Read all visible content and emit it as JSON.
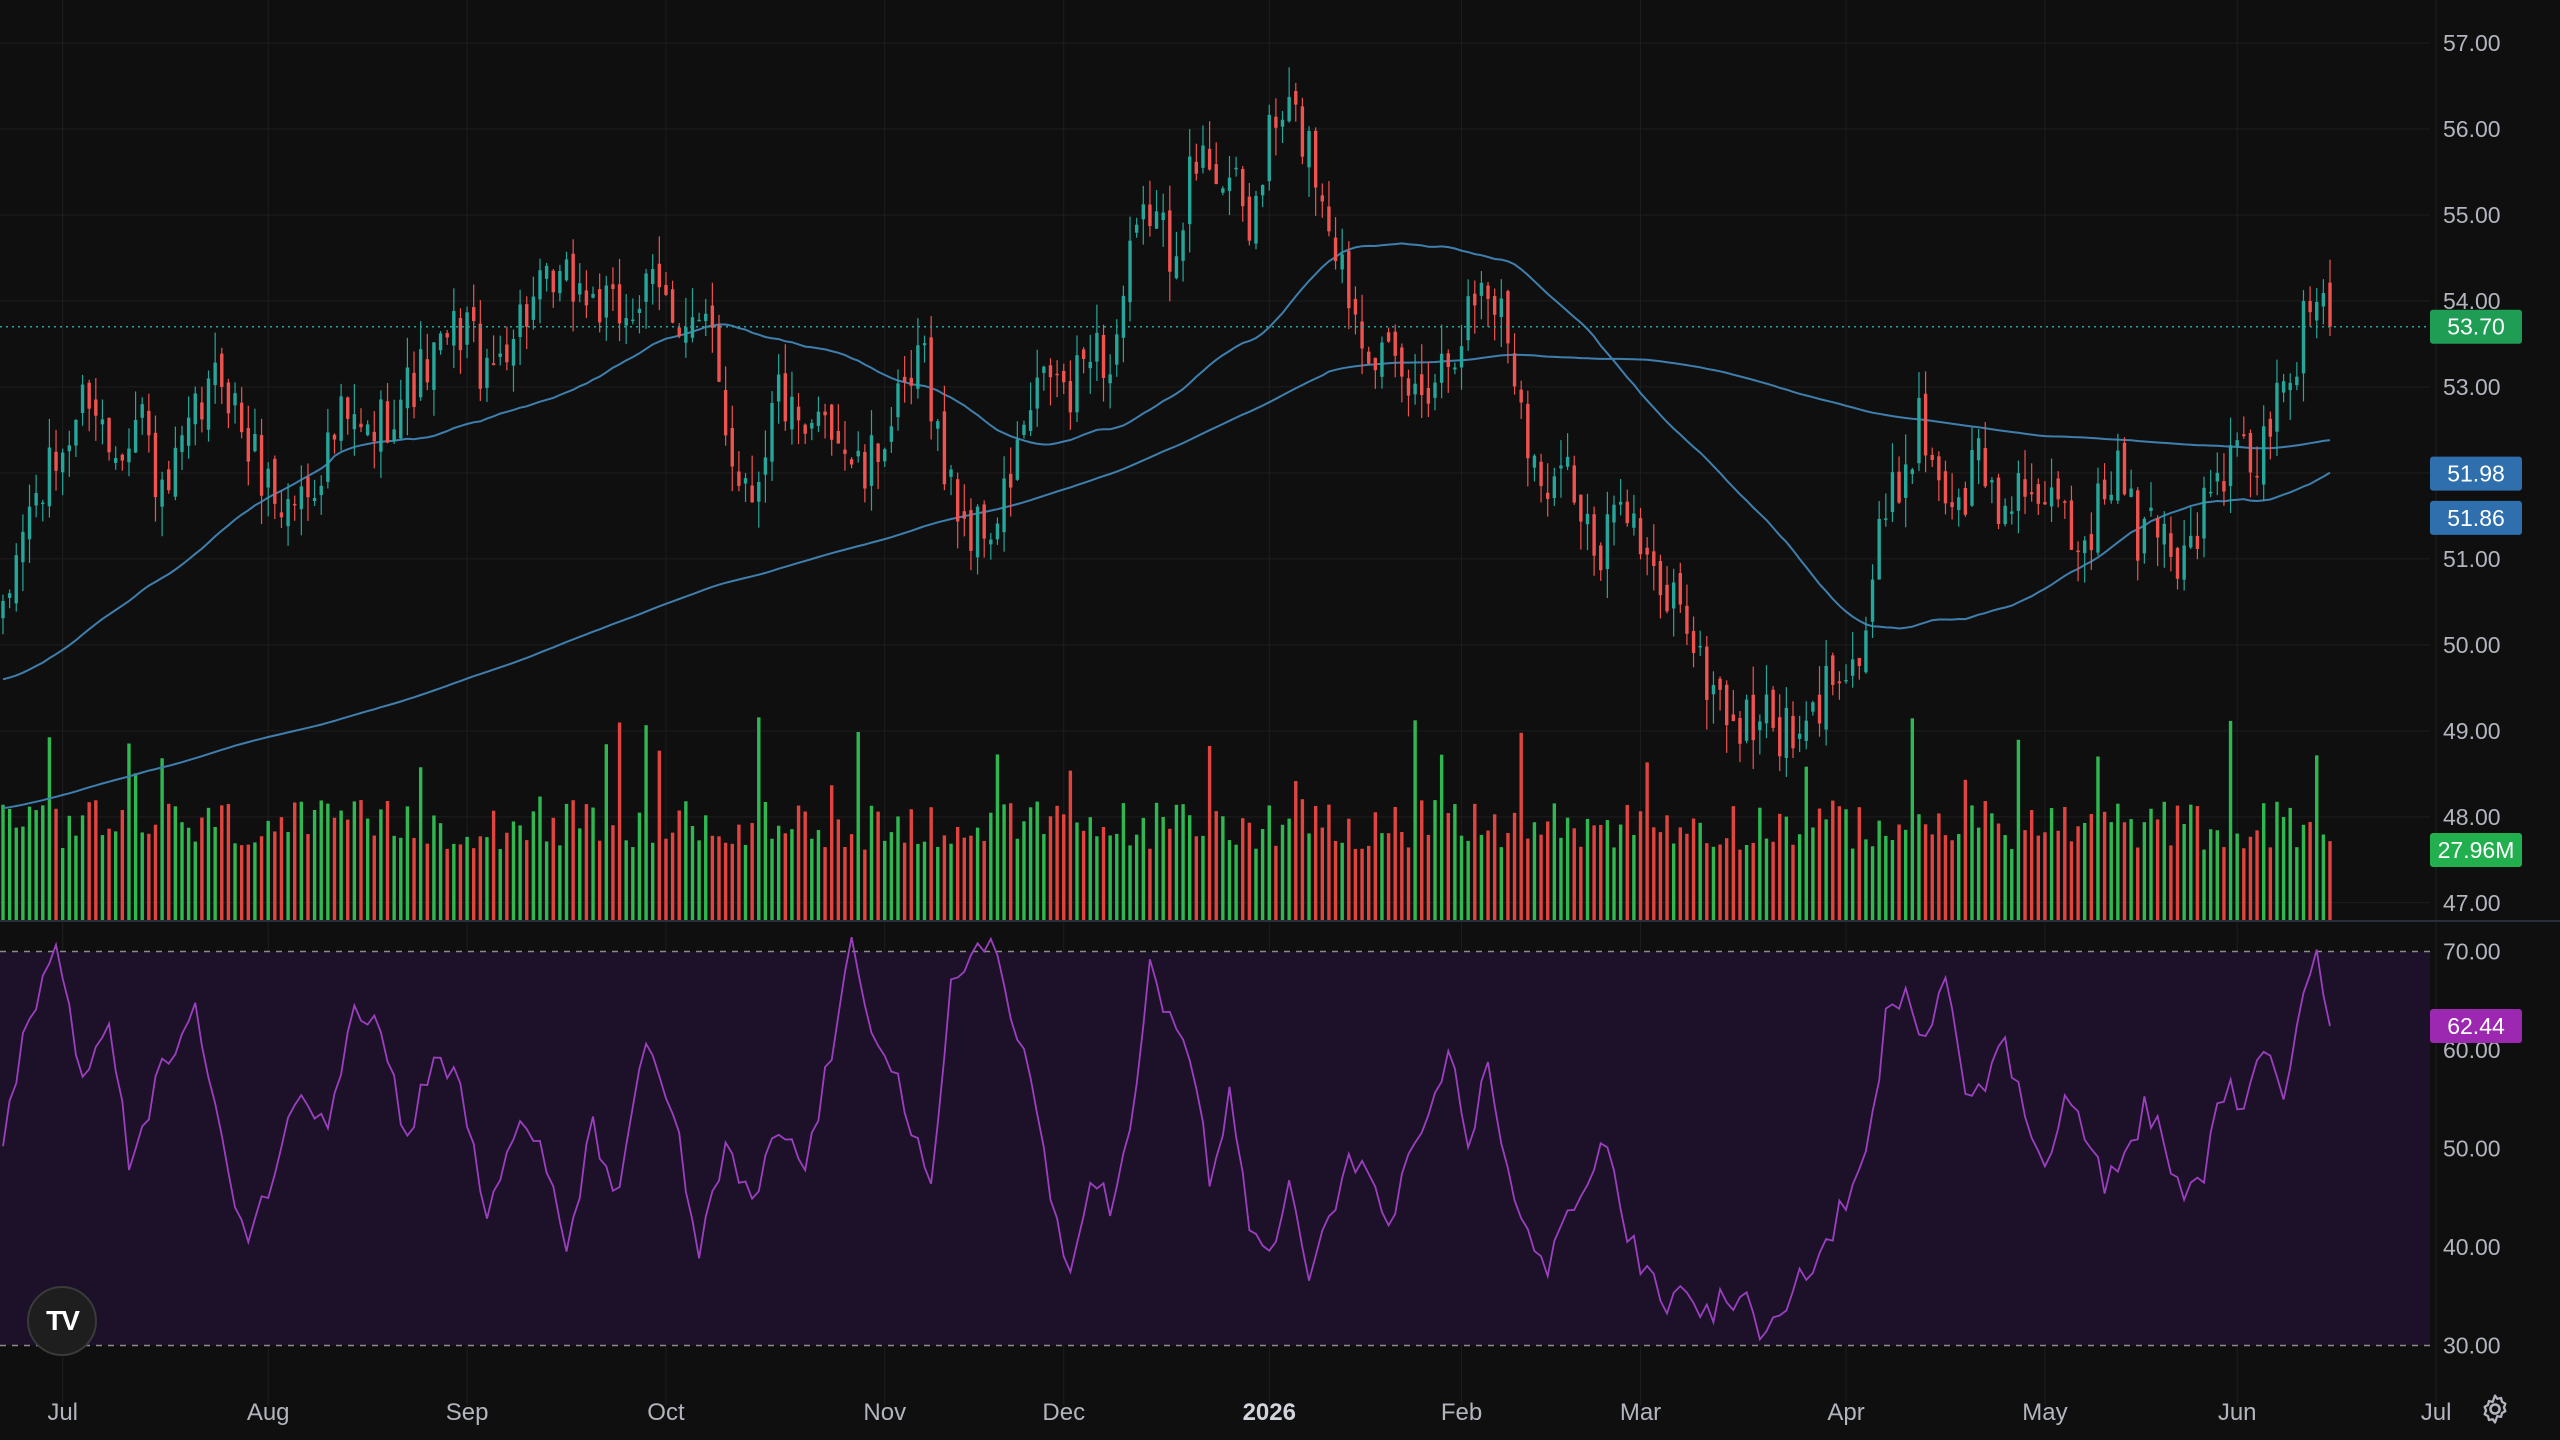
{
  "logo": {
    "text": "TV",
    "name": "tradingview-logo"
  },
  "settings_icon": "gear-icon",
  "colors": {
    "background": "#0f0f0f",
    "grid": "#1e1e1e",
    "up": "#26a69a",
    "down": "#ef5350",
    "volume_up": "#2fb851",
    "volume_down": "#e0443f",
    "ma": "#3f7fae",
    "rsi_line": "#9b3fbf",
    "rsi_band": "#1c1128",
    "price_badge": "#1f9d55",
    "ma_badge": "#2f6fad",
    "rsi_badge": "#9c27b0",
    "volume_badge": "#22b04f"
  },
  "chart_data": {
    "type": "candlestick",
    "price_axis": {
      "ticks": [
        "57.00",
        "56.00",
        "55.00",
        "54.00",
        "53.00",
        "52.00",
        "51.00",
        "50.00",
        "49.00",
        "48.00",
        "47.00"
      ],
      "ylim": [
        46.8,
        57.5
      ]
    },
    "rsi_axis": {
      "ticks": [
        "70.00",
        "60.00",
        "50.00",
        "40.00",
        "30.00"
      ],
      "overbought": 70,
      "oversold": 30,
      "ylim": [
        27,
        73
      ]
    },
    "x_axis": {
      "labels": [
        {
          "text": "Jul",
          "index": 9,
          "bold": false
        },
        {
          "text": "Aug",
          "index": 40,
          "bold": false
        },
        {
          "text": "Sep",
          "index": 70,
          "bold": false
        },
        {
          "text": "Oct",
          "index": 100,
          "bold": false
        },
        {
          "text": "Nov",
          "index": 133,
          "bold": false
        },
        {
          "text": "Dec",
          "index": 160,
          "bold": false
        },
        {
          "text": "2026",
          "index": 191,
          "bold": true
        },
        {
          "text": "Feb",
          "index": 220,
          "bold": false
        },
        {
          "text": "Mar",
          "index": 247,
          "bold": false
        },
        {
          "text": "Apr",
          "index": 278,
          "bold": false
        },
        {
          "text": "May",
          "index": 308,
          "bold": false
        },
        {
          "text": "Jun",
          "index": 337,
          "bold": false
        },
        {
          "text": "Jul",
          "index": 367,
          "bold": false
        }
      ]
    },
    "last_price": "53.70",
    "last_price_value": 53.7,
    "ma_labels": [
      "51.98",
      "51.86"
    ],
    "ma_values": [
      51.98,
      51.86
    ],
    "volume_label": "27.96M",
    "rsi_label": "62.44",
    "rsi_value": 62.44,
    "anchors": [
      [
        0,
        50.2
      ],
      [
        3,
        51.4
      ],
      [
        8,
        52.1
      ],
      [
        13,
        53.0
      ],
      [
        16,
        52.3
      ],
      [
        21,
        52.7
      ],
      [
        24,
        51.6
      ],
      [
        29,
        52.6
      ],
      [
        33,
        53.2
      ],
      [
        37,
        52.3
      ],
      [
        42,
        51.6
      ],
      [
        46,
        51.8
      ],
      [
        51,
        52.6
      ],
      [
        55,
        52.4
      ],
      [
        60,
        52.9
      ],
      [
        65,
        53.3
      ],
      [
        70,
        53.8
      ],
      [
        73,
        53.0
      ],
      [
        76,
        53.6
      ],
      [
        80,
        54.0
      ],
      [
        86,
        54.2
      ],
      [
        92,
        53.8
      ],
      [
        98,
        54.1
      ],
      [
        103,
        53.8
      ],
      [
        107,
        53.5
      ],
      [
        110,
        52.2
      ],
      [
        113,
        51.8
      ],
      [
        117,
        53.0
      ],
      [
        121,
        52.2
      ],
      [
        124,
        52.8
      ],
      [
        127,
        52.3
      ],
      [
        130,
        51.9
      ],
      [
        133,
        52.5
      ],
      [
        136,
        52.8
      ],
      [
        139,
        53.4
      ],
      [
        142,
        52.0
      ],
      [
        146,
        51.3
      ],
      [
        150,
        51.4
      ],
      [
        154,
        52.5
      ],
      [
        158,
        53.2
      ],
      [
        161,
        52.8
      ],
      [
        164,
        53.6
      ],
      [
        167,
        53.2
      ],
      [
        170,
        54.4
      ],
      [
        173,
        55.1
      ],
      [
        176,
        54.6
      ],
      [
        179,
        55.4
      ],
      [
        182,
        55.7
      ],
      [
        185,
        55.4
      ],
      [
        188,
        54.8
      ],
      [
        191,
        55.9
      ],
      [
        194,
        56.2
      ],
      [
        197,
        55.8
      ],
      [
        200,
        55.0
      ],
      [
        203,
        54.1
      ],
      [
        206,
        53.6
      ],
      [
        209,
        53.2
      ],
      [
        213,
        52.9
      ],
      [
        217,
        53.3
      ],
      [
        220,
        53.7
      ],
      [
        223,
        54.2
      ],
      [
        226,
        53.9
      ],
      [
        229,
        52.9
      ],
      [
        232,
        51.7
      ],
      [
        235,
        52.4
      ],
      [
        238,
        51.5
      ],
      [
        241,
        50.8
      ],
      [
        244,
        52.0
      ],
      [
        247,
        51.1
      ],
      [
        250,
        50.5
      ],
      [
        253,
        50.6
      ],
      [
        256,
        49.7
      ],
      [
        259,
        49.4
      ],
      [
        262,
        49.0
      ],
      [
        265,
        49.2
      ],
      [
        268,
        49.0
      ],
      [
        271,
        48.8
      ],
      [
        274,
        49.3
      ],
      [
        277,
        49.9
      ],
      [
        280,
        49.8
      ],
      [
        283,
        51.2
      ],
      [
        286,
        51.9
      ],
      [
        289,
        52.6
      ],
      [
        292,
        52.0
      ],
      [
        295,
        51.5
      ],
      [
        298,
        52.3
      ],
      [
        301,
        51.5
      ],
      [
        304,
        52.0
      ],
      [
        307,
        51.3
      ],
      [
        310,
        51.8
      ],
      [
        313,
        51.1
      ],
      [
        316,
        51.6
      ],
      [
        319,
        52.1
      ],
      [
        322,
        51.2
      ],
      [
        325,
        51.5
      ],
      [
        328,
        51.0
      ],
      [
        331,
        51.4
      ],
      [
        334,
        51.9
      ],
      [
        337,
        52.2
      ],
      [
        340,
        52.1
      ],
      [
        343,
        52.8
      ],
      [
        346,
        53.4
      ],
      [
        349,
        54.2
      ],
      [
        351,
        53.7
      ]
    ],
    "rsi_anchors": [
      [
        0,
        50
      ],
      [
        4,
        64
      ],
      [
        8,
        70
      ],
      [
        12,
        58
      ],
      [
        16,
        62
      ],
      [
        19,
        49
      ],
      [
        24,
        58
      ],
      [
        29,
        64
      ],
      [
        33,
        50
      ],
      [
        37,
        41
      ],
      [
        41,
        48
      ],
      [
        45,
        56
      ],
      [
        49,
        53
      ],
      [
        53,
        65
      ],
      [
        57,
        62
      ],
      [
        61,
        51
      ],
      [
        65,
        60
      ],
      [
        69,
        56
      ],
      [
        73,
        43
      ],
      [
        77,
        52
      ],
      [
        81,
        50
      ],
      [
        85,
        40
      ],
      [
        89,
        52
      ],
      [
        93,
        45
      ],
      [
        97,
        61
      ],
      [
        101,
        54
      ],
      [
        105,
        39
      ],
      [
        109,
        50
      ],
      [
        113,
        44
      ],
      [
        117,
        52
      ],
      [
        121,
        48
      ],
      [
        125,
        60
      ],
      [
        128,
        70
      ],
      [
        131,
        63
      ],
      [
        134,
        59
      ],
      [
        137,
        52
      ],
      [
        140,
        45
      ],
      [
        143,
        66
      ],
      [
        146,
        70
      ],
      [
        149,
        72
      ],
      [
        152,
        63
      ],
      [
        155,
        58
      ],
      [
        158,
        44
      ],
      [
        161,
        37
      ],
      [
        164,
        48
      ],
      [
        167,
        44
      ],
      [
        170,
        51
      ],
      [
        173,
        68
      ],
      [
        176,
        63
      ],
      [
        179,
        60
      ],
      [
        182,
        47
      ],
      [
        185,
        55
      ],
      [
        188,
        42
      ],
      [
        191,
        39
      ],
      [
        194,
        46
      ],
      [
        197,
        37
      ],
      [
        200,
        42
      ],
      [
        203,
        50
      ],
      [
        206,
        47
      ],
      [
        209,
        42
      ],
      [
        212,
        48
      ],
      [
        215,
        52
      ],
      [
        218,
        60
      ],
      [
        221,
        51
      ],
      [
        224,
        58
      ],
      [
        227,
        48
      ],
      [
        230,
        41
      ],
      [
        233,
        37
      ],
      [
        236,
        44
      ],
      [
        239,
        47
      ],
      [
        242,
        51
      ],
      [
        245,
        41
      ],
      [
        248,
        37
      ],
      [
        251,
        34
      ],
      [
        254,
        36
      ],
      [
        257,
        33
      ],
      [
        260,
        35
      ],
      [
        263,
        34
      ],
      [
        266,
        31
      ],
      [
        269,
        33
      ],
      [
        272,
        38
      ],
      [
        275,
        40
      ],
      [
        278,
        45
      ],
      [
        281,
        49
      ],
      [
        284,
        63
      ],
      [
        287,
        65
      ],
      [
        290,
        62
      ],
      [
        293,
        68
      ],
      [
        296,
        57
      ],
      [
        299,
        56
      ],
      [
        302,
        61
      ],
      [
        305,
        53
      ],
      [
        308,
        49
      ],
      [
        311,
        55
      ],
      [
        314,
        52
      ],
      [
        317,
        46
      ],
      [
        320,
        49
      ],
      [
        323,
        54
      ],
      [
        326,
        51
      ],
      [
        329,
        44
      ],
      [
        332,
        48
      ],
      [
        335,
        56
      ],
      [
        338,
        55
      ],
      [
        341,
        59
      ],
      [
        344,
        56
      ],
      [
        347,
        67
      ],
      [
        349,
        71
      ],
      [
        351,
        62.4
      ]
    ],
    "candle_count": 352
  }
}
